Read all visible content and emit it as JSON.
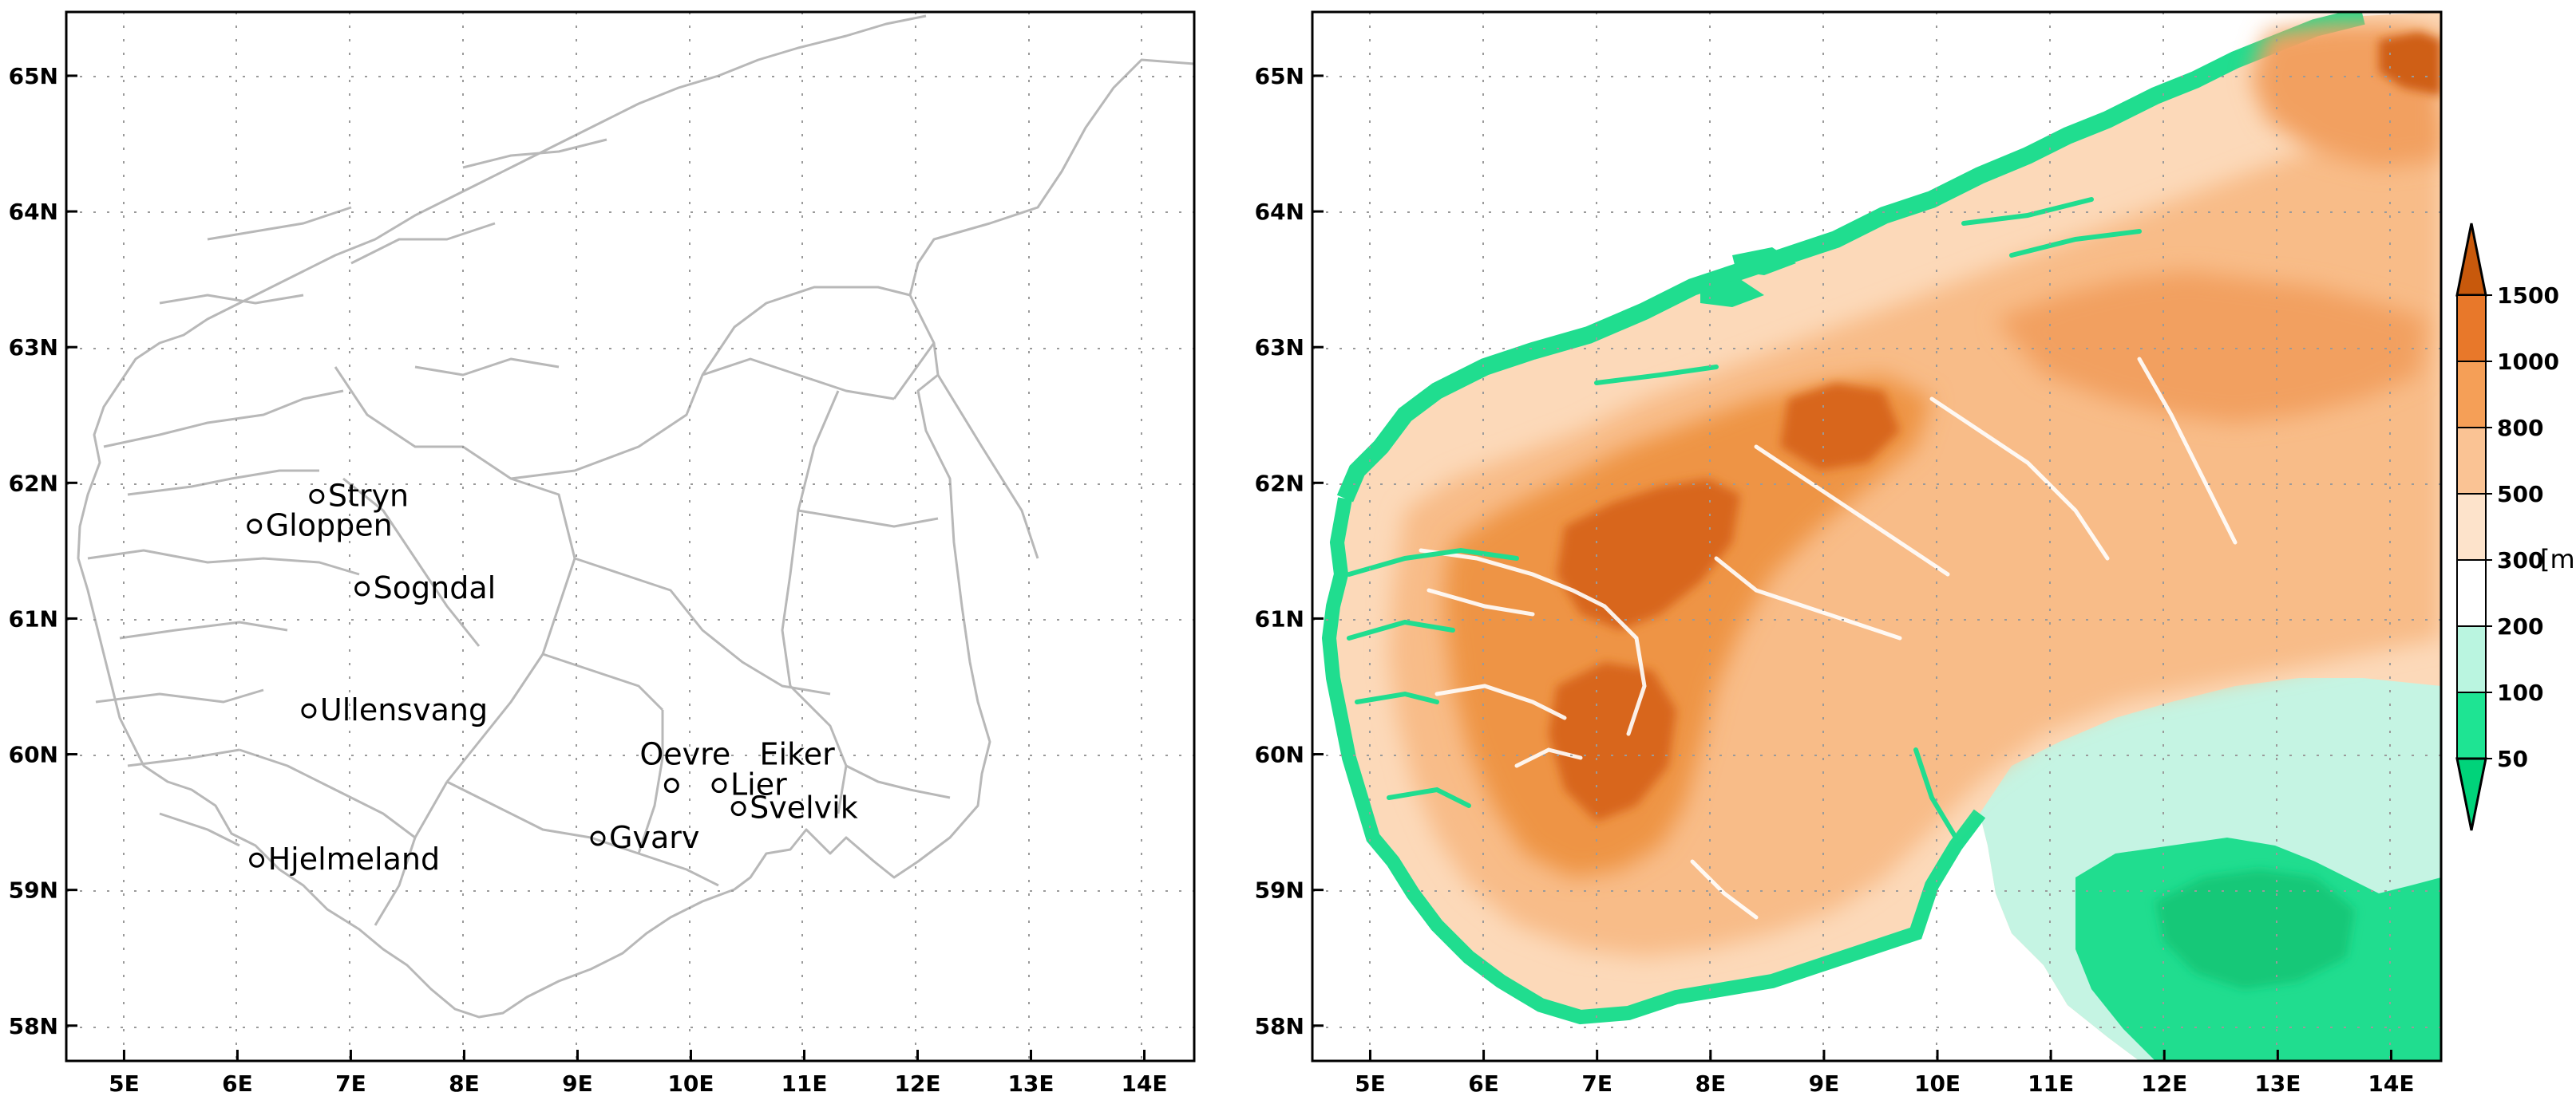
{
  "left_panel": {
    "lat_labels": [
      "65N",
      "64N",
      "63N",
      "62N",
      "61N",
      "60N",
      "59N",
      "58N"
    ],
    "lon_labels": [
      "5E",
      "6E",
      "7E",
      "8E",
      "9E",
      "10E",
      "11E",
      "12E",
      "13E",
      "14E"
    ],
    "stations": [
      {
        "name": "Stryn",
        "lon": 6.7,
        "lat": 61.9,
        "label": "Stryn"
      },
      {
        "name": "Gloppen",
        "lon": 6.15,
        "lat": 61.68,
        "label": "Gloppen"
      },
      {
        "name": "Sogndal",
        "lon": 7.1,
        "lat": 61.22,
        "label": "Sogndal"
      },
      {
        "name": "Ullensvang",
        "lon": 6.63,
        "lat": 60.32,
        "label": "Ullensvang"
      },
      {
        "name": "Oevre Eiker",
        "lon": 9.83,
        "lat": 59.77,
        "label": "Oevre   Eiker"
      },
      {
        "name": "Lier",
        "lon": 10.25,
        "lat": 59.77,
        "label": "Lier"
      },
      {
        "name": "Svelvik",
        "lon": 10.42,
        "lat": 59.6,
        "label": "Svelvik"
      },
      {
        "name": "Gvarv",
        "lon": 9.18,
        "lat": 59.38,
        "label": "Gvarv"
      },
      {
        "name": "Hjelmeland",
        "lon": 6.17,
        "lat": 59.22,
        "label": "Hjelmeland"
      }
    ],
    "colors": {
      "coast": "#b8b8b8",
      "grid": "#9a9a9a",
      "marker": "#000000"
    }
  },
  "right_panel": {
    "lat_labels": [
      "65N",
      "64N",
      "63N",
      "62N",
      "61N",
      "60N",
      "59N",
      "58N"
    ],
    "lon_labels": [
      "5E",
      "6E",
      "7E",
      "8E",
      "9E",
      "10E",
      "11E",
      "12E",
      "13E",
      "14E"
    ],
    "colorbar": {
      "unit": "[m]",
      "ticks": [
        "50",
        "100",
        "200",
        "300",
        "500",
        "800",
        "1000",
        "1500"
      ],
      "colors": [
        "#00d37a",
        "#1ee493",
        "#baf5e0",
        "#ffffff",
        "#fde3cb",
        "#fac394",
        "#f59f57",
        "#e8782a",
        "#c8590c"
      ]
    },
    "elevation_colors": {
      "lowland": "#20dd8f",
      "low": "#c5f4e3",
      "mid": "#fbd8b8",
      "high": "#f4a766",
      "peak": "#d8661b"
    }
  }
}
